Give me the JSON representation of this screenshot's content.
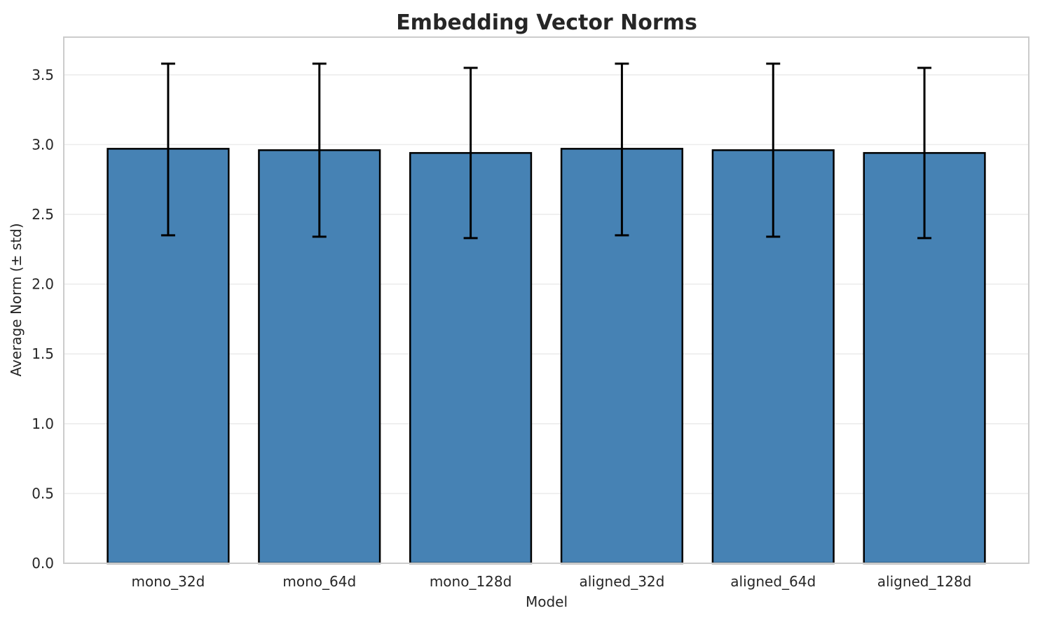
{
  "chart_data": {
    "type": "bar",
    "title": "Embedding Vector Norms",
    "xlabel": "Model",
    "ylabel": "Average Norm (± std)",
    "categories": [
      "mono_32d",
      "mono_64d",
      "mono_128d",
      "aligned_32d",
      "aligned_64d",
      "aligned_128d"
    ],
    "values": [
      2.97,
      2.96,
      2.94,
      2.97,
      2.96,
      2.94
    ],
    "error_high": [
      3.58,
      3.58,
      3.55,
      3.58,
      3.58,
      3.55
    ],
    "error_low": [
      2.35,
      2.34,
      2.33,
      2.35,
      2.34,
      2.33
    ],
    "ylim": [
      0,
      3.77
    ],
    "yticks": [
      0.0,
      0.5,
      1.0,
      1.5,
      2.0,
      2.5,
      3.0,
      3.5
    ],
    "ytick_labels": [
      "0.0",
      "0.5",
      "1.0",
      "1.5",
      "2.0",
      "2.5",
      "3.0",
      "3.5"
    ],
    "grid": true,
    "legend_position": "none",
    "bar_color": "#4682b4",
    "bar_edge_color": "#000000",
    "error_color": "#000000",
    "grid_color": "#ececec",
    "spine_color": "#cccccc",
    "text_color": "#262626",
    "background": "#ffffff"
  }
}
